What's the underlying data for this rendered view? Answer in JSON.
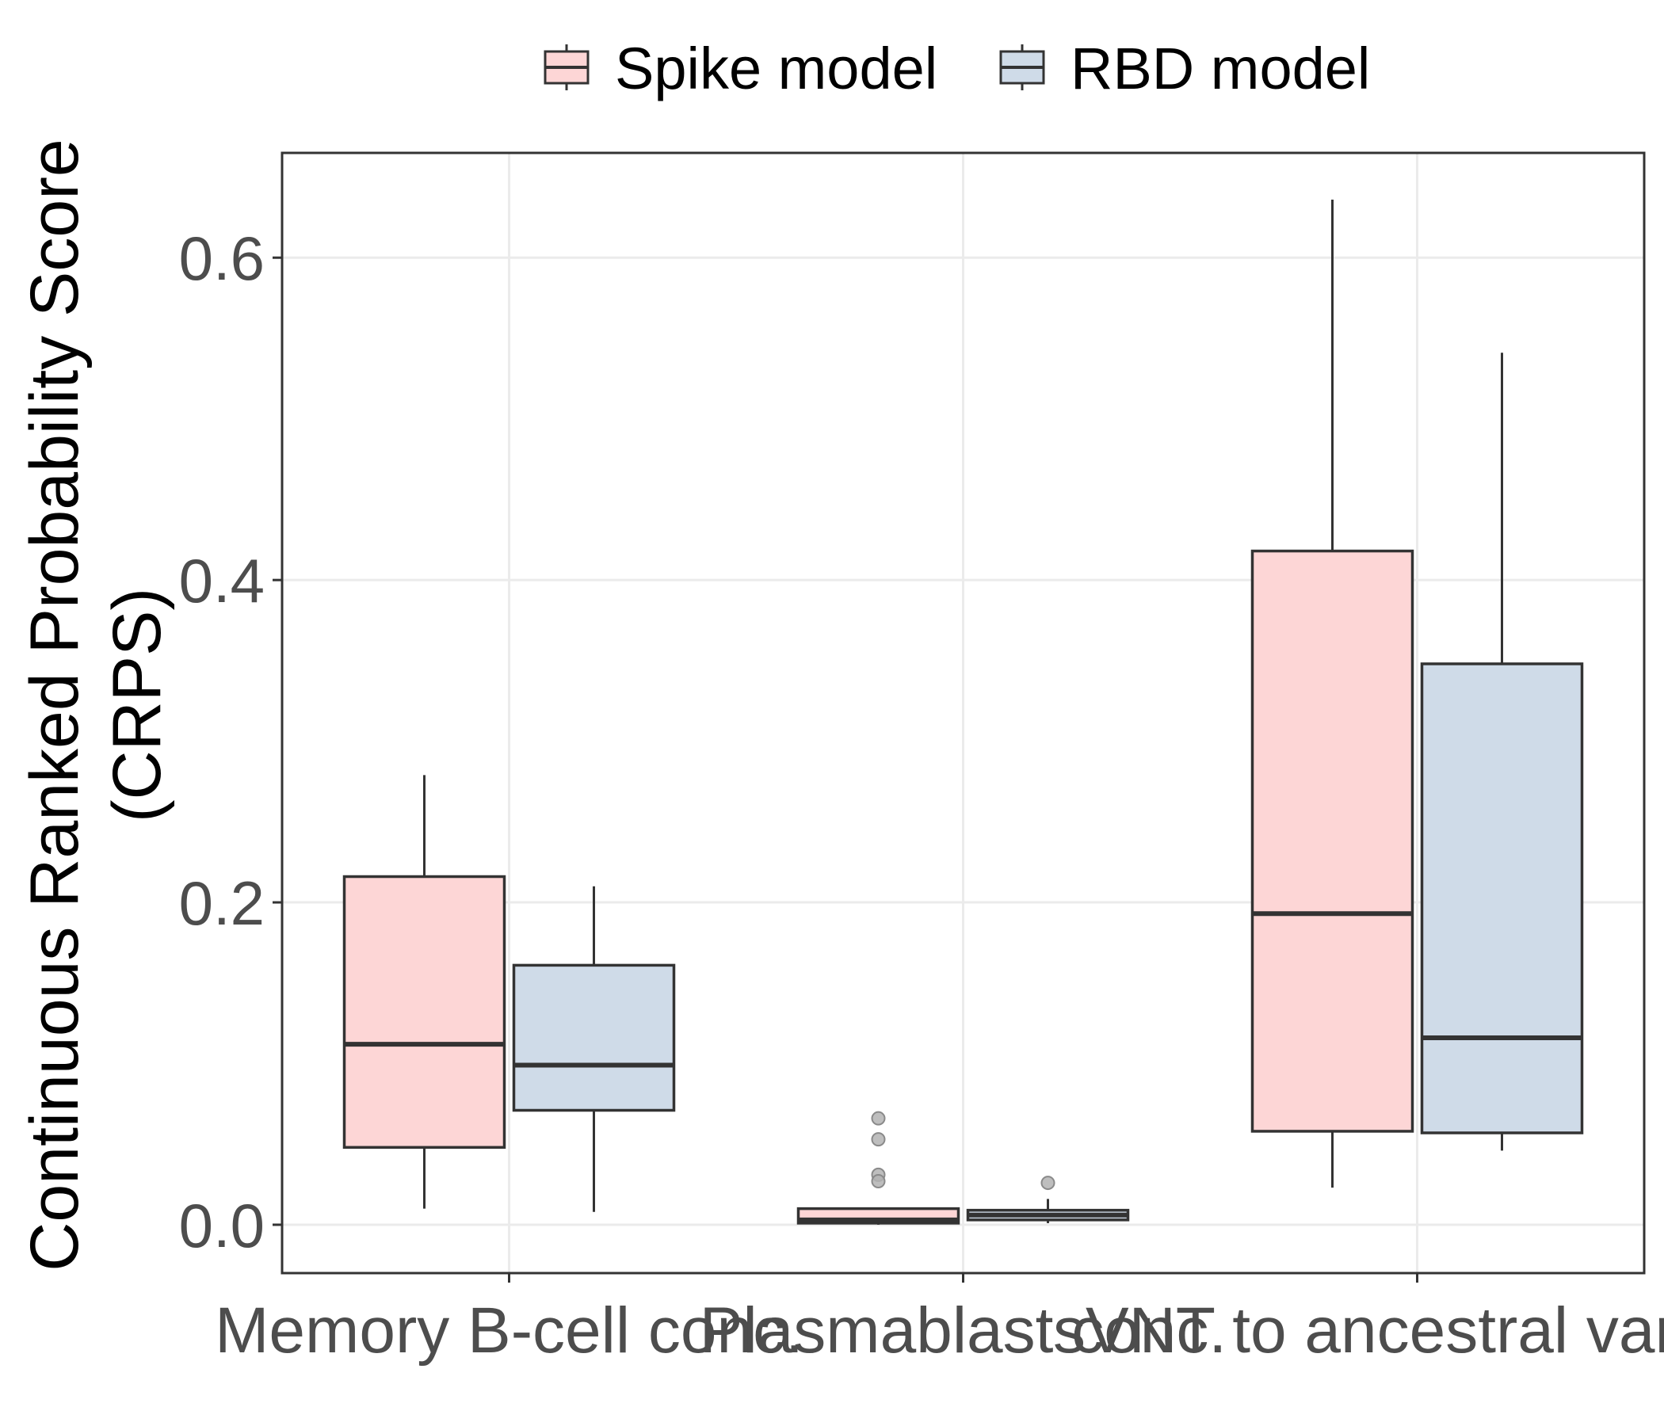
{
  "chart_data": {
    "type": "boxplot",
    "ylabel_lines": [
      "Continuous Ranked Probability Score",
      "(CRPS)"
    ],
    "xlabel": "",
    "ylim": [
      -0.03,
      0.665
    ],
    "yticks": [
      0.0,
      0.2,
      0.4,
      0.6
    ],
    "ytick_labels": [
      "0.0",
      "0.2",
      "0.4",
      "0.6"
    ],
    "grid": true,
    "legend_position": "top",
    "categories": [
      "Memory B-cell conc.",
      "Plasmablast conc.",
      "sVNT to ancestral variant"
    ],
    "series": [
      {
        "name": "Spike model",
        "color": "#fdd6d6",
        "boxes": [
          {
            "whisker_low": 0.01,
            "q1": 0.048,
            "median": 0.112,
            "q3": 0.216,
            "whisker_high": 0.279,
            "outliers": []
          },
          {
            "whisker_low": 0.0,
            "q1": 0.001,
            "median": 0.003,
            "q3": 0.01,
            "whisker_high": 0.01,
            "outliers": [
              0.066,
              0.053,
              0.031,
              0.027
            ]
          },
          {
            "whisker_low": 0.023,
            "q1": 0.058,
            "median": 0.193,
            "q3": 0.418,
            "whisker_high": 0.636,
            "outliers": []
          }
        ]
      },
      {
        "name": "RBD model",
        "color": "#cfdbe8",
        "boxes": [
          {
            "whisker_low": 0.008,
            "q1": 0.071,
            "median": 0.099,
            "q3": 0.161,
            "whisker_high": 0.21,
            "outliers": []
          },
          {
            "whisker_low": 0.001,
            "q1": 0.003,
            "median": 0.006,
            "q3": 0.009,
            "whisker_high": 0.016,
            "outliers": [
              0.026
            ]
          },
          {
            "whisker_low": 0.046,
            "q1": 0.057,
            "median": 0.116,
            "q3": 0.348,
            "whisker_high": 0.541,
            "outliers": []
          }
        ]
      }
    ]
  }
}
